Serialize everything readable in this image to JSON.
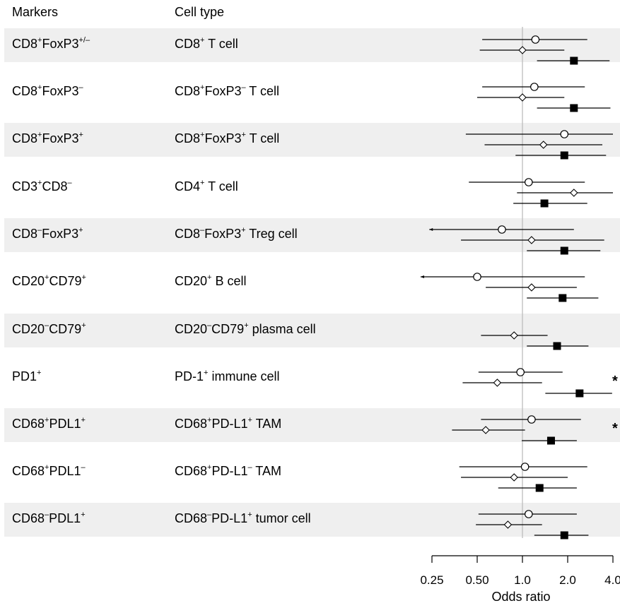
{
  "headers": {
    "markers": "Markers",
    "cell_type": "Cell type"
  },
  "chart_data": {
    "type": "forest",
    "xlabel": "Odds ratio",
    "x_scale": "log2",
    "xlim": [
      0.25,
      4.0
    ],
    "ticks": [
      0.25,
      0.5,
      1.0,
      2.0,
      4.0
    ],
    "tick_labels": [
      "0.25",
      "0.50",
      "1.0",
      "2.0",
      "4.0"
    ],
    "reference_line": 1.0,
    "marker_shapes": {
      "circle": "open-circle",
      "diamond": "open-diamond",
      "square": "filled-square"
    },
    "rows": [
      {
        "marker_parts": [
          [
            "CD8",
            "+"
          ],
          [
            "FoxP3",
            "+/–"
          ]
        ],
        "cell_parts": [
          [
            "CD8",
            "+"
          ],
          [
            " T cell",
            ""
          ]
        ],
        "shaded": true,
        "star": false,
        "estimates": [
          {
            "shape": "circle",
            "or": 1.22,
            "lo": 0.54,
            "hi": 2.7
          },
          {
            "shape": "diamond",
            "or": 1.0,
            "lo": 0.52,
            "hi": 1.9
          },
          {
            "shape": "square",
            "or": 2.2,
            "lo": 1.25,
            "hi": 3.8
          }
        ]
      },
      {
        "marker_parts": [
          [
            "CD8",
            "+"
          ],
          [
            "FoxP3",
            "–"
          ]
        ],
        "cell_parts": [
          [
            "CD8",
            "+"
          ],
          [
            "FoxP3",
            "–"
          ],
          [
            " T cell",
            ""
          ]
        ],
        "shaded": false,
        "star": false,
        "estimates": [
          {
            "shape": "circle",
            "or": 1.2,
            "lo": 0.54,
            "hi": 2.6
          },
          {
            "shape": "diamond",
            "or": 1.0,
            "lo": 0.5,
            "hi": 1.9
          },
          {
            "shape": "square",
            "or": 2.2,
            "lo": 1.25,
            "hi": 3.85
          }
        ]
      },
      {
        "marker_parts": [
          [
            "CD8",
            "+"
          ],
          [
            "FoxP3",
            "+"
          ]
        ],
        "cell_parts": [
          [
            "CD8",
            "+"
          ],
          [
            "FoxP3",
            "+"
          ],
          [
            " T cell",
            ""
          ]
        ],
        "shaded": true,
        "star": false,
        "estimates": [
          {
            "shape": "circle",
            "or": 1.9,
            "lo": 0.42,
            "hi": 4.0
          },
          {
            "shape": "diamond",
            "or": 1.38,
            "lo": 0.56,
            "hi": 3.4
          },
          {
            "shape": "square",
            "or": 1.9,
            "lo": 0.9,
            "hi": 3.6
          }
        ]
      },
      {
        "marker_parts": [
          [
            "CD3",
            "+"
          ],
          [
            "CD8",
            "–"
          ]
        ],
        "cell_parts": [
          [
            "CD4",
            "+"
          ],
          [
            " T cell",
            ""
          ]
        ],
        "shaded": false,
        "star": false,
        "estimates": [
          {
            "shape": "circle",
            "or": 1.1,
            "lo": 0.44,
            "hi": 2.6
          },
          {
            "shape": "diamond",
            "or": 2.2,
            "lo": 0.92,
            "hi": 4.0
          },
          {
            "shape": "square",
            "or": 1.4,
            "lo": 0.87,
            "hi": 2.7
          }
        ]
      },
      {
        "marker_parts": [
          [
            "CD8",
            "–"
          ],
          [
            "FoxP3",
            "+"
          ]
        ],
        "cell_parts": [
          [
            "CD8",
            "–"
          ],
          [
            "FoxP3",
            "+"
          ],
          [
            "  Treg cell",
            ""
          ]
        ],
        "shaded": true,
        "star": false,
        "estimates": [
          {
            "shape": "circle",
            "or": 0.73,
            "lo": 0.24,
            "hi": 2.2
          },
          {
            "shape": "diamond",
            "or": 1.15,
            "lo": 0.39,
            "hi": 3.5
          },
          {
            "shape": "square",
            "or": 1.9,
            "lo": 1.07,
            "hi": 3.3
          }
        ]
      },
      {
        "marker_parts": [
          [
            "CD20",
            "+"
          ],
          [
            "CD79",
            "+"
          ]
        ],
        "cell_parts": [
          [
            "CD20",
            "+"
          ],
          [
            " B cell",
            ""
          ]
        ],
        "shaded": false,
        "star": false,
        "estimates": [
          {
            "shape": "circle",
            "or": 0.5,
            "lo": 0.21,
            "hi": 2.6
          },
          {
            "shape": "diamond",
            "or": 1.15,
            "lo": 0.57,
            "hi": 2.3
          },
          {
            "shape": "square",
            "or": 1.85,
            "lo": 1.07,
            "hi": 3.2
          }
        ]
      },
      {
        "marker_parts": [
          [
            "CD20",
            "–"
          ],
          [
            "CD79",
            "+"
          ]
        ],
        "cell_parts": [
          [
            "CD20",
            "–"
          ],
          [
            "CD79",
            "+"
          ],
          [
            " plasma cell",
            ""
          ]
        ],
        "shaded": true,
        "star": false,
        "estimates": [
          {
            "shape": "diamond",
            "or": 0.88,
            "lo": 0.53,
            "hi": 1.47
          },
          {
            "shape": "square",
            "or": 1.7,
            "lo": 1.07,
            "hi": 2.75
          }
        ]
      },
      {
        "marker_parts": [
          [
            "PD1",
            "+"
          ]
        ],
        "cell_parts": [
          [
            "PD-1",
            "+"
          ],
          [
            " immune cell",
            ""
          ]
        ],
        "shaded": false,
        "star": true,
        "estimates": [
          {
            "shape": "circle",
            "or": 0.97,
            "lo": 0.51,
            "hi": 1.85
          },
          {
            "shape": "diamond",
            "or": 0.68,
            "lo": 0.4,
            "hi": 1.35
          },
          {
            "shape": "square",
            "or": 2.4,
            "lo": 1.42,
            "hi": 3.95
          }
        ]
      },
      {
        "marker_parts": [
          [
            "CD68",
            "+"
          ],
          [
            "PDL1",
            "+"
          ]
        ],
        "cell_parts": [
          [
            "CD68",
            "+"
          ],
          [
            "PD-L1",
            "+"
          ],
          [
            " TAM",
            ""
          ]
        ],
        "shaded": true,
        "star": true,
        "estimates": [
          {
            "shape": "circle",
            "or": 1.15,
            "lo": 0.53,
            "hi": 2.45
          },
          {
            "shape": "diamond",
            "or": 0.57,
            "lo": 0.34,
            "hi": 1.04
          },
          {
            "shape": "square",
            "or": 1.55,
            "lo": 0.99,
            "hi": 2.3
          }
        ]
      },
      {
        "marker_parts": [
          [
            "CD68",
            "+"
          ],
          [
            "PDL1",
            "–"
          ]
        ],
        "cell_parts": [
          [
            "CD68",
            "+"
          ],
          [
            "PD-L1",
            "–"
          ],
          [
            " TAM",
            ""
          ]
        ],
        "shaded": false,
        "star": false,
        "estimates": [
          {
            "shape": "circle",
            "or": 1.04,
            "lo": 0.38,
            "hi": 2.7
          },
          {
            "shape": "diamond",
            "or": 0.88,
            "lo": 0.39,
            "hi": 2.0
          },
          {
            "shape": "square",
            "or": 1.3,
            "lo": 0.69,
            "hi": 2.3
          }
        ]
      },
      {
        "marker_parts": [
          [
            "CD68",
            "–"
          ],
          [
            "PDL1",
            "+"
          ]
        ],
        "cell_parts": [
          [
            "CD68",
            "–"
          ],
          [
            "PD-L1",
            "+"
          ],
          [
            " tumor cell",
            ""
          ]
        ],
        "shaded": true,
        "star": false,
        "estimates": [
          {
            "shape": "circle",
            "or": 1.1,
            "lo": 0.51,
            "hi": 2.3
          },
          {
            "shape": "diamond",
            "or": 0.8,
            "lo": 0.49,
            "hi": 1.35
          },
          {
            "shape": "square",
            "or": 1.9,
            "lo": 1.2,
            "hi": 2.75
          }
        ]
      }
    ],
    "significance_marker": "*"
  }
}
